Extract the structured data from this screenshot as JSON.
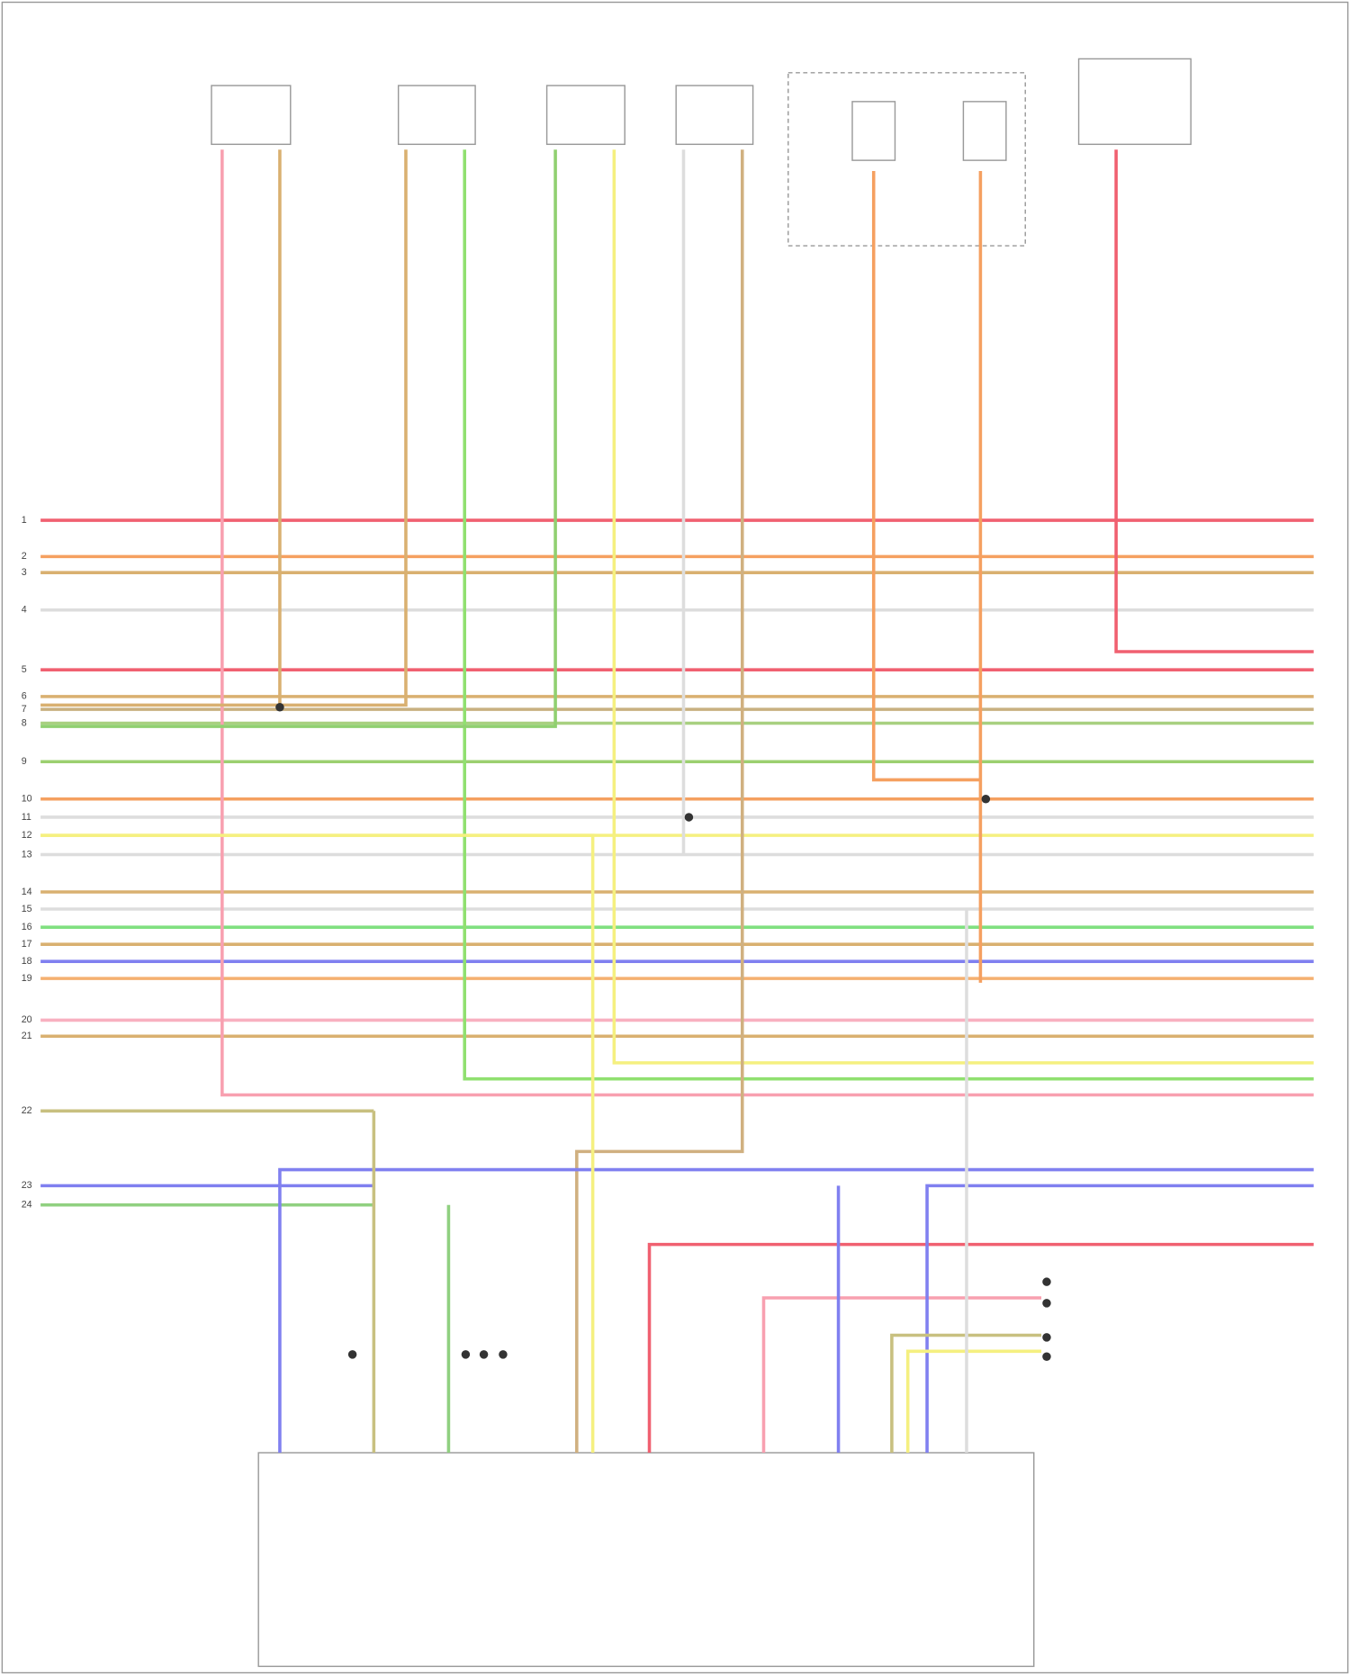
{
  "pins_left": [
    "1",
    "2",
    "3",
    "4",
    "5",
    "6",
    "7",
    "8",
    "9",
    "10",
    "11",
    "12",
    "13",
    "14",
    "15",
    "16",
    "17",
    "18",
    "19",
    "20",
    "21",
    "22",
    "23",
    "24"
  ]
}
